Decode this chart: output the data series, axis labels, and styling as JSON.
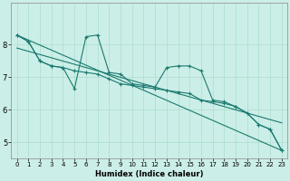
{
  "xlabel": "Humidex (Indice chaleur)",
  "bg_color": "#cceee8",
  "grid_color": "#aaddcc",
  "line_color": "#1a7a6e",
  "xlim": [
    -0.5,
    23.5
  ],
  "ylim": [
    4.5,
    9.3
  ],
  "xticks": [
    0,
    1,
    2,
    3,
    4,
    5,
    6,
    7,
    8,
    9,
    10,
    11,
    12,
    13,
    14,
    15,
    16,
    17,
    18,
    19,
    20,
    21,
    22,
    23
  ],
  "yticks": [
    5,
    6,
    7,
    8
  ],
  "series1_x": [
    0,
    1,
    2,
    3,
    4,
    5,
    6,
    7,
    8,
    9,
    10,
    11,
    12,
    13,
    14,
    15,
    16,
    17,
    18,
    19,
    20,
    21,
    22,
    23
  ],
  "series1_y": [
    8.3,
    8.1,
    7.5,
    7.35,
    7.3,
    7.2,
    7.15,
    7.1,
    6.95,
    6.8,
    6.75,
    6.7,
    6.65,
    6.6,
    6.55,
    6.5,
    6.3,
    6.25,
    6.2,
    6.1,
    5.9,
    5.55,
    5.4,
    4.75
  ],
  "series2_x": [
    0,
    1,
    2,
    3,
    4,
    5,
    6,
    7,
    8,
    9,
    10,
    11,
    12,
    13,
    14,
    15,
    16,
    17,
    18,
    19,
    20,
    21,
    22,
    23
  ],
  "series2_y": [
    8.3,
    8.1,
    7.5,
    7.35,
    7.3,
    6.65,
    8.25,
    8.3,
    7.15,
    7.1,
    6.8,
    6.75,
    6.7,
    7.3,
    7.35,
    7.35,
    7.2,
    6.3,
    6.25,
    6.1,
    5.9,
    5.55,
    5.4,
    4.75
  ],
  "trend1_x": [
    0,
    23
  ],
  "trend1_y": [
    8.3,
    4.75
  ],
  "trend2_x": [
    0,
    23
  ],
  "trend2_y": [
    7.9,
    5.6
  ]
}
